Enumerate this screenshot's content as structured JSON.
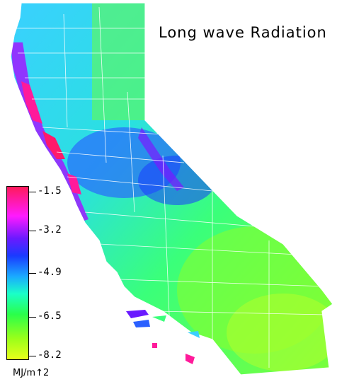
{
  "map": {
    "title": "Long wave Radiation",
    "region": "California",
    "legend": {
      "unit": "MJ/m↑2",
      "ticks": [
        "-1.5",
        "-3.2",
        "-4.9",
        "-6.5",
        "-8.2"
      ],
      "min": -8.2,
      "max": -1.5,
      "colors": {
        "high": "#ff1a5a",
        "mid_high": "#6a1aff",
        "mid": "#1a3aff",
        "mid_low": "#2aff4a",
        "low": "#e8ff1a"
      }
    }
  }
}
